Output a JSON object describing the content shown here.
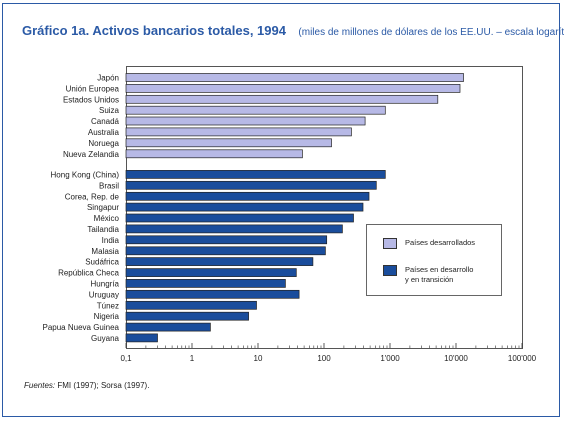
{
  "title": {
    "main": "Gráfico 1a. Activos bancarios totales, 1994",
    "sub": "(miles de millones de dólares de los EE.UU. – escala logarítmica)"
  },
  "source": {
    "label": "Fuentes:",
    "text": "FMI (1997); Sorsa (1997)."
  },
  "colors": {
    "developed": "#b7b9e6",
    "developing": "#1a4d9c",
    "accent": "#2b5aa6"
  },
  "chart_data": {
    "type": "bar",
    "orientation": "horizontal",
    "scale": "log",
    "xlim": [
      0.1,
      100000
    ],
    "x_ticks": [
      {
        "value": 0.1,
        "label": "0,1"
      },
      {
        "value": 1,
        "label": "1"
      },
      {
        "value": 10,
        "label": "10"
      },
      {
        "value": 100,
        "label": "100"
      },
      {
        "value": 1000,
        "label": "1'000"
      },
      {
        "value": 10000,
        "label": "10'000"
      },
      {
        "value": 100000,
        "label": "100'000"
      }
    ],
    "grid": false,
    "legend_position": "right",
    "series": [
      {
        "name": "Países desarrollados",
        "color": "#b7b9e6",
        "categories": [
          "Japón",
          "Unión Europea",
          "Estados Unidos",
          "Suiza",
          "Canadá",
          "Australia",
          "Noruega",
          "Nueva Zelandia"
        ],
        "values": [
          13000,
          11500,
          5300,
          850,
          420,
          260,
          130,
          47
        ]
      },
      {
        "name": "Países en desarrollo\ny en transición",
        "color": "#1a4d9c",
        "categories": [
          "Hong Kong (China)",
          "Brasil",
          "Corea, Rep. de",
          "Singapur",
          "México",
          "Tailandia",
          "India",
          "Malasia",
          "Sudáfrica",
          "República Checa",
          "Hungría",
          "Uruguay",
          "Túnez",
          "Nigeria",
          "Papua Nueva Guinea",
          "Guyana"
        ],
        "values": [
          850,
          620,
          480,
          390,
          280,
          190,
          110,
          105,
          68,
          38,
          26,
          42,
          9.5,
          7.2,
          1.9,
          0.3
        ]
      }
    ]
  }
}
